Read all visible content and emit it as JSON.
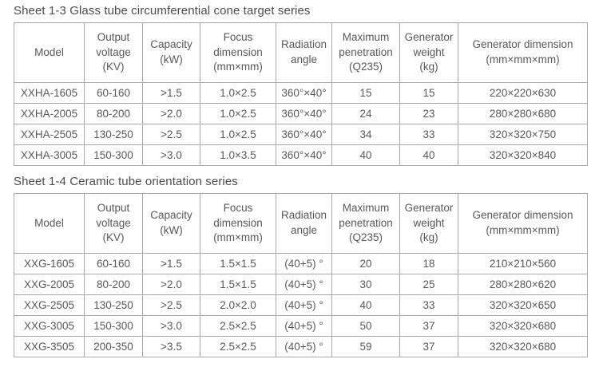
{
  "colors": {
    "text": "#595959",
    "title_text": "#4c4c4c",
    "border": "#a8a8a8",
    "background": "#ffffff"
  },
  "sheets": [
    {
      "title": "Sheet 1-3 Glass tube circumferential cone target series",
      "headers": [
        "Model",
        "Output\nvoltage\n(KV)",
        "Capacity\n(kW)",
        "Focus\ndimension\n(mm×mm)",
        "Radiation\nangle",
        "Maximum\npenetration\n(Q235)",
        "Generator\nweight\n(kg)",
        "Generator dimension\n(mm×mm×mm)"
      ],
      "rows": [
        [
          "XXHA-1605",
          "60-160",
          ">1.5",
          "1.0×2.5",
          "360°×40°",
          "15",
          "15",
          "220×220×630"
        ],
        [
          "XXHA-2005",
          "80-200",
          ">2.0",
          "1.0×2.5",
          "360°×40°",
          "24",
          "23",
          "280×280×680"
        ],
        [
          "XXHA-2505",
          "130-250",
          ">2.5",
          "1.0×2.5",
          "360°×40°",
          "34",
          "33",
          "320×320×750"
        ],
        [
          "XXHA-3005",
          "150-300",
          ">3.0",
          "1.0×3.5",
          "360°×40°",
          "40",
          "40",
          "320×320×840"
        ]
      ]
    },
    {
      "title": "Sheet 1-4 Ceramic tube orientation series",
      "headers": [
        "Model",
        "Output\nvoltage\n(KV)",
        "Capacity\n(kW)",
        "Focus\ndimension\n(mm×mm)",
        "Radiation\nangle",
        "Maximum\npenetration\n(Q235)",
        "Generator\nweight\n(kg)",
        "Generator dimension\n(mm×mm×mm)"
      ],
      "rows": [
        [
          "XXG-1605",
          "60-160",
          ">1.5",
          "1.5×1.5",
          "(40+5) °",
          "20",
          "18",
          "210×210×560"
        ],
        [
          "XXG-2005",
          "80-200",
          ">2.0",
          "1.5×1.5",
          "(40+5) °",
          "30",
          "25",
          "280×280×620"
        ],
        [
          "XXG-2505",
          "130-250",
          ">2.5",
          "2.0×2.0",
          "(40+5) °",
          "40",
          "33",
          "320×320×650"
        ],
        [
          "XXG-3005",
          "150-300",
          ">3.0",
          "2.5×2.5",
          "(40+5) °",
          "50",
          "37",
          "320×320×680"
        ],
        [
          "XXG-3505",
          "200-350",
          ">3.5",
          "2.5×2.5",
          "(40+5) °",
          "59",
          "37",
          "320×320×680"
        ]
      ]
    }
  ]
}
